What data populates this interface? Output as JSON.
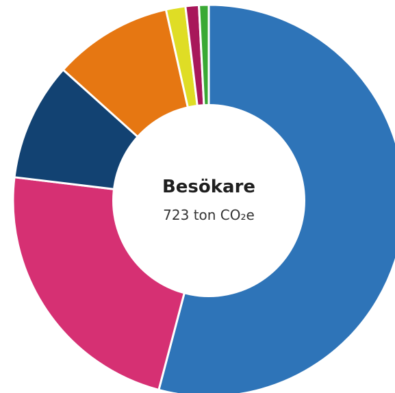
{
  "chart_data": {
    "type": "pie",
    "donut": true,
    "title": "Besökare",
    "subtitle": "723 ton CO₂e",
    "values": [
      53.9,
      22.7,
      9.7,
      9.8,
      1.6,
      1.1,
      0.8
    ],
    "colors": [
      "#2e74b8",
      "#d63073",
      "#124272",
      "#e67712",
      "#dfdd25",
      "#a8175a",
      "#3aa935"
    ]
  }
}
